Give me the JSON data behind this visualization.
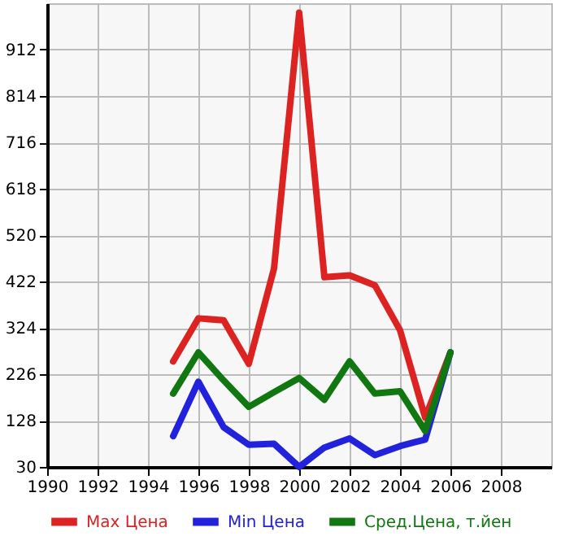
{
  "chart_data": {
    "type": "line",
    "x": [
      1995,
      1996,
      1997,
      1998,
      1999,
      2000,
      2001,
      2002,
      2003,
      2004,
      2005,
      2006
    ],
    "series": [
      {
        "name": "Max Цена",
        "color": "#dd2222",
        "values": [
          253,
          344,
          340,
          248,
          449,
          990,
          431,
          435,
          414,
          319,
          134,
          272
        ]
      },
      {
        "name": "Min Цена",
        "color": "#2222dd",
        "values": [
          95,
          210,
          114,
          77,
          79,
          30,
          71,
          90,
          55,
          74,
          88,
          272
        ]
      },
      {
        "name": "Сред.Цена, т.йен",
        "color": "#117711",
        "values": [
          185,
          272,
          213,
          157,
          188,
          218,
          172,
          253,
          185,
          190,
          106,
          272
        ]
      }
    ],
    "xlim": [
      1990,
      2010
    ],
    "xticks": [
      1990,
      1992,
      1994,
      1996,
      1998,
      2000,
      2002,
      2004,
      2006,
      2008
    ],
    "ylim": [
      30,
      1010
    ],
    "yticks": [
      30,
      128,
      226,
      324,
      422,
      520,
      618,
      716,
      814,
      912
    ],
    "grid": true,
    "legend": "bottom",
    "marker": "none",
    "line_style": "solid"
  }
}
